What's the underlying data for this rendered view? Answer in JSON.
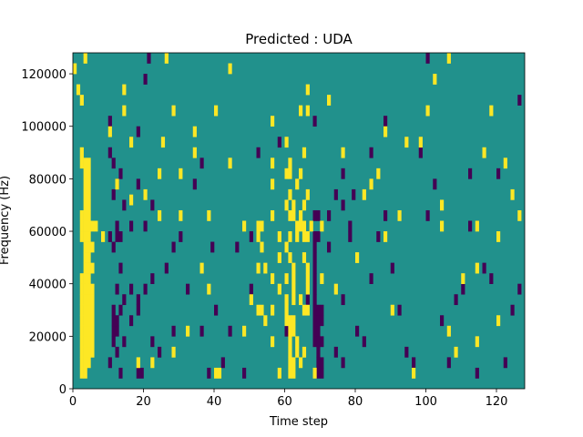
{
  "chart_data": {
    "type": "heatmap",
    "title": "Predicted : UDA",
    "xlabel": "Time step",
    "ylabel": "Frequency (Hz)",
    "xlim": [
      0,
      128
    ],
    "ylim": [
      0,
      128000
    ],
    "x_ticks": [
      0,
      20,
      40,
      60,
      80,
      100,
      120
    ],
    "y_ticks": [
      0,
      20000,
      40000,
      60000,
      80000,
      100000,
      120000
    ],
    "x_tick_labels": [
      "0",
      "20",
      "40",
      "60",
      "80",
      "100",
      "120"
    ],
    "y_tick_labels": [
      "0",
      "20000",
      "40000",
      "60000",
      "80000",
      "100000",
      "120000"
    ],
    "background_value": 0,
    "colors": {
      "background": "#21918c",
      "positive": "#fde725",
      "negative": "#440154"
    },
    "grid": false,
    "legend": "none",
    "positive_cells": [
      [
        2,
        4000
      ],
      [
        2,
        8000
      ],
      [
        2,
        12000
      ],
      [
        2,
        16000
      ],
      [
        2,
        20000
      ],
      [
        2,
        24000
      ],
      [
        2,
        28000
      ],
      [
        2,
        32000
      ],
      [
        2,
        36000
      ],
      [
        2,
        40000
      ],
      [
        2,
        56000
      ],
      [
        2,
        60000
      ],
      [
        2,
        64000
      ],
      [
        2,
        84000
      ],
      [
        2,
        88000
      ],
      [
        3,
        4000
      ],
      [
        3,
        8000
      ],
      [
        3,
        12000
      ],
      [
        3,
        16000
      ],
      [
        3,
        20000
      ],
      [
        3,
        24000
      ],
      [
        3,
        28000
      ],
      [
        3,
        32000
      ],
      [
        3,
        36000
      ],
      [
        3,
        40000
      ],
      [
        3,
        44000
      ],
      [
        3,
        48000
      ],
      [
        3,
        52000
      ],
      [
        3,
        56000
      ],
      [
        3,
        60000
      ],
      [
        3,
        64000
      ],
      [
        3,
        68000
      ],
      [
        3,
        72000
      ],
      [
        3,
        76000
      ],
      [
        3,
        80000
      ],
      [
        3,
        84000
      ],
      [
        4,
        8000
      ],
      [
        4,
        12000
      ],
      [
        4,
        16000
      ],
      [
        4,
        20000
      ],
      [
        4,
        24000
      ],
      [
        4,
        28000
      ],
      [
        4,
        32000
      ],
      [
        4,
        36000
      ],
      [
        4,
        40000
      ],
      [
        4,
        44000
      ],
      [
        4,
        48000
      ],
      [
        4,
        52000
      ],
      [
        4,
        56000
      ],
      [
        4,
        60000
      ],
      [
        4,
        64000
      ],
      [
        4,
        68000
      ],
      [
        4,
        72000
      ],
      [
        4,
        76000
      ],
      [
        4,
        80000
      ],
      [
        4,
        84000
      ],
      [
        5,
        12000
      ],
      [
        5,
        16000
      ],
      [
        5,
        20000
      ],
      [
        5,
        24000
      ],
      [
        5,
        28000
      ],
      [
        5,
        32000
      ],
      [
        5,
        36000
      ],
      [
        5,
        44000
      ],
      [
        5,
        52000
      ],
      [
        5,
        60000
      ],
      [
        6,
        60000
      ],
      [
        8,
        56000
      ],
      [
        0,
        120000
      ],
      [
        1,
        112000
      ],
      [
        2,
        108000
      ],
      [
        3,
        124000
      ],
      [
        10,
        96000
      ],
      [
        12,
        76000
      ],
      [
        14,
        104000
      ],
      [
        14,
        112000
      ],
      [
        16,
        92000
      ],
      [
        16,
        70000
      ],
      [
        18,
        8000
      ],
      [
        20,
        72000
      ],
      [
        22,
        8000
      ],
      [
        24,
        64000
      ],
      [
        24,
        80000
      ],
      [
        25,
        92000
      ],
      [
        26,
        124000
      ],
      [
        28,
        12000
      ],
      [
        28,
        104000
      ],
      [
        30,
        64000
      ],
      [
        30,
        80000
      ],
      [
        32,
        20000
      ],
      [
        34,
        88000
      ],
      [
        34,
        96000
      ],
      [
        36,
        44000
      ],
      [
        38,
        36000
      ],
      [
        38,
        64000
      ],
      [
        40,
        104000
      ],
      [
        44,
        120000
      ],
      [
        40,
        4000
      ],
      [
        41,
        4000
      ],
      [
        44,
        84000
      ],
      [
        48,
        20000
      ],
      [
        48,
        60000
      ],
      [
        50,
        32000
      ],
      [
        52,
        28000
      ],
      [
        52,
        44000
      ],
      [
        52,
        56000
      ],
      [
        52,
        60000
      ],
      [
        53,
        28000
      ],
      [
        53,
        52000
      ],
      [
        53,
        60000
      ],
      [
        54,
        24000
      ],
      [
        54,
        44000
      ],
      [
        56,
        16000
      ],
      [
        56,
        28000
      ],
      [
        56,
        40000
      ],
      [
        56,
        64000
      ],
      [
        56,
        76000
      ],
      [
        56,
        84000
      ],
      [
        56,
        100000
      ],
      [
        58,
        4000
      ],
      [
        58,
        36000
      ],
      [
        58,
        48000
      ],
      [
        58,
        56000
      ],
      [
        60,
        24000
      ],
      [
        60,
        28000
      ],
      [
        60,
        32000
      ],
      [
        60,
        40000
      ],
      [
        60,
        52000
      ],
      [
        60,
        68000
      ],
      [
        60,
        80000
      ],
      [
        60,
        92000
      ],
      [
        61,
        4000
      ],
      [
        61,
        8000
      ],
      [
        61,
        12000
      ],
      [
        61,
        16000
      ],
      [
        61,
        20000
      ],
      [
        61,
        24000
      ],
      [
        61,
        48000
      ],
      [
        61,
        56000
      ],
      [
        61,
        64000
      ],
      [
        61,
        72000
      ],
      [
        61,
        80000
      ],
      [
        61,
        84000
      ],
      [
        62,
        4000
      ],
      [
        62,
        8000
      ],
      [
        62,
        20000
      ],
      [
        62,
        24000
      ],
      [
        62,
        32000
      ],
      [
        62,
        36000
      ],
      [
        62,
        40000
      ],
      [
        62,
        44000
      ],
      [
        62,
        64000
      ],
      [
        62,
        68000
      ],
      [
        63,
        12000
      ],
      [
        63,
        16000
      ],
      [
        63,
        56000
      ],
      [
        63,
        60000
      ],
      [
        63,
        76000
      ],
      [
        64,
        8000
      ],
      [
        64,
        32000
      ],
      [
        64,
        60000
      ],
      [
        64,
        64000
      ],
      [
        64,
        80000
      ],
      [
        64,
        104000
      ],
      [
        65,
        12000
      ],
      [
        65,
        28000
      ],
      [
        65,
        48000
      ],
      [
        65,
        56000
      ],
      [
        65,
        60000
      ],
      [
        65,
        68000
      ],
      [
        65,
        88000
      ],
      [
        66,
        28000
      ],
      [
        66,
        36000
      ],
      [
        66,
        40000
      ],
      [
        66,
        44000
      ],
      [
        66,
        56000
      ],
      [
        66,
        72000
      ],
      [
        66,
        104000
      ],
      [
        66,
        112000
      ],
      [
        67,
        60000
      ],
      [
        68,
        4000
      ],
      [
        70,
        40000
      ],
      [
        70,
        60000
      ],
      [
        72,
        108000
      ],
      [
        74,
        36000
      ],
      [
        76,
        88000
      ],
      [
        80,
        48000
      ],
      [
        82,
        72000
      ],
      [
        84,
        76000
      ],
      [
        86,
        80000
      ],
      [
        88,
        56000
      ],
      [
        88,
        96000
      ],
      [
        90,
        28000
      ],
      [
        92,
        64000
      ],
      [
        94,
        92000
      ],
      [
        96,
        4000
      ],
      [
        98,
        92000
      ],
      [
        100,
        104000
      ],
      [
        102,
        116000
      ],
      [
        104,
        60000
      ],
      [
        104,
        68000
      ],
      [
        106,
        20000
      ],
      [
        106,
        124000
      ],
      [
        108,
        12000
      ],
      [
        110,
        40000
      ],
      [
        114,
        16000
      ],
      [
        114,
        44000
      ],
      [
        114,
        60000
      ],
      [
        116,
        88000
      ],
      [
        118,
        104000
      ],
      [
        120,
        56000
      ],
      [
        120,
        24000
      ],
      [
        122,
        84000
      ],
      [
        124,
        72000
      ],
      [
        126,
        64000
      ]
    ],
    "negative_cells": [
      [
        10,
        8000
      ],
      [
        10,
        56000
      ],
      [
        10,
        88000
      ],
      [
        10,
        100000
      ],
      [
        11,
        16000
      ],
      [
        11,
        20000
      ],
      [
        11,
        24000
      ],
      [
        11,
        28000
      ],
      [
        11,
        52000
      ],
      [
        11,
        72000
      ],
      [
        11,
        84000
      ],
      [
        12,
        12000
      ],
      [
        12,
        20000
      ],
      [
        12,
        24000
      ],
      [
        12,
        36000
      ],
      [
        12,
        56000
      ],
      [
        12,
        60000
      ],
      [
        12,
        76000
      ],
      [
        13,
        4000
      ],
      [
        13,
        28000
      ],
      [
        13,
        44000
      ],
      [
        13,
        56000
      ],
      [
        13,
        80000
      ],
      [
        14,
        16000
      ],
      [
        14,
        32000
      ],
      [
        14,
        68000
      ],
      [
        16,
        24000
      ],
      [
        16,
        36000
      ],
      [
        16,
        60000
      ],
      [
        18,
        4000
      ],
      [
        18,
        28000
      ],
      [
        18,
        32000
      ],
      [
        18,
        76000
      ],
      [
        18,
        96000
      ],
      [
        19,
        4000
      ],
      [
        20,
        36000
      ],
      [
        20,
        60000
      ],
      [
        20,
        116000
      ],
      [
        21,
        124000
      ],
      [
        22,
        16000
      ],
      [
        22,
        40000
      ],
      [
        22,
        68000
      ],
      [
        24,
        12000
      ],
      [
        26,
        44000
      ],
      [
        28,
        20000
      ],
      [
        28,
        52000
      ],
      [
        30,
        56000
      ],
      [
        32,
        36000
      ],
      [
        34,
        76000
      ],
      [
        36,
        20000
      ],
      [
        36,
        84000
      ],
      [
        38,
        4000
      ],
      [
        39,
        52000
      ],
      [
        40,
        28000
      ],
      [
        42,
        8000
      ],
      [
        44,
        20000
      ],
      [
        46,
        52000
      ],
      [
        48,
        4000
      ],
      [
        50,
        36000
      ],
      [
        50,
        56000
      ],
      [
        52,
        88000
      ],
      [
        58,
        92000
      ],
      [
        60,
        20000
      ],
      [
        66,
        32000
      ],
      [
        68,
        16000
      ],
      [
        68,
        20000
      ],
      [
        68,
        24000
      ],
      [
        68,
        28000
      ],
      [
        68,
        32000
      ],
      [
        68,
        36000
      ],
      [
        68,
        40000
      ],
      [
        68,
        44000
      ],
      [
        68,
        48000
      ],
      [
        68,
        52000
      ],
      [
        68,
        56000
      ],
      [
        68,
        64000
      ],
      [
        68,
        100000
      ],
      [
        69,
        4000
      ],
      [
        69,
        8000
      ],
      [
        69,
        12000
      ],
      [
        69,
        16000
      ],
      [
        69,
        20000
      ],
      [
        69,
        24000
      ],
      [
        69,
        28000
      ],
      [
        69,
        56000
      ],
      [
        69,
        64000
      ],
      [
        70,
        4000
      ],
      [
        70,
        8000
      ],
      [
        70,
        16000
      ],
      [
        70,
        24000
      ],
      [
        70,
        28000
      ],
      [
        72,
        52000
      ],
      [
        72,
        64000
      ],
      [
        74,
        12000
      ],
      [
        74,
        72000
      ],
      [
        76,
        8000
      ],
      [
        76,
        32000
      ],
      [
        76,
        68000
      ],
      [
        76,
        80000
      ],
      [
        78,
        60000
      ],
      [
        78,
        56000
      ],
      [
        79,
        72000
      ],
      [
        80,
        20000
      ],
      [
        82,
        16000
      ],
      [
        84,
        40000
      ],
      [
        84,
        88000
      ],
      [
        86,
        56000
      ],
      [
        88,
        64000
      ],
      [
        88,
        100000
      ],
      [
        90,
        44000
      ],
      [
        92,
        28000
      ],
      [
        94,
        12000
      ],
      [
        96,
        8000
      ],
      [
        98,
        88000
      ],
      [
        100,
        64000
      ],
      [
        100,
        124000
      ],
      [
        102,
        76000
      ],
      [
        104,
        24000
      ],
      [
        106,
        8000
      ],
      [
        108,
        32000
      ],
      [
        110,
        36000
      ],
      [
        112,
        60000
      ],
      [
        112,
        80000
      ],
      [
        114,
        4000
      ],
      [
        116,
        44000
      ],
      [
        118,
        40000
      ],
      [
        120,
        80000
      ],
      [
        122,
        8000
      ],
      [
        124,
        28000
      ],
      [
        126,
        36000
      ],
      [
        126,
        108000
      ]
    ]
  }
}
